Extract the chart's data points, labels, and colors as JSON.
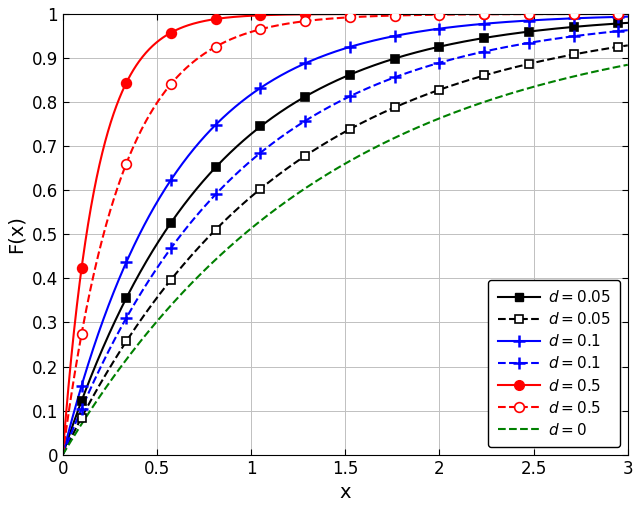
{
  "xlabel": "x",
  "ylabel": "F(x)",
  "xlim": [
    0,
    3
  ],
  "ylim": [
    0,
    1
  ],
  "xticks": [
    0,
    0.5,
    1.0,
    1.5,
    2.0,
    2.5,
    3.0
  ],
  "yticks": [
    0,
    0.1,
    0.2,
    0.3,
    0.4,
    0.5,
    0.6,
    0.7,
    0.8,
    0.9,
    1.0
  ],
  "figsize": [
    6.4,
    5.09
  ],
  "dpi": 100,
  "curves": [
    {
      "color": "black",
      "ls": "-",
      "marker": "s",
      "filled": true,
      "lam": 1.3,
      "label": "d = 0.05"
    },
    {
      "color": "black",
      "ls": "--",
      "marker": "s",
      "filled": false,
      "lam": 0.88,
      "label": "d = 0.05"
    },
    {
      "color": "blue",
      "ls": "-",
      "marker": "+",
      "filled": true,
      "lam": 1.7,
      "label": "d = 0.1"
    },
    {
      "color": "blue",
      "ls": "--",
      "marker": "+",
      "filled": false,
      "lam": 1.1,
      "label": "d = 0.1"
    },
    {
      "color": "red",
      "ls": "-",
      "marker": "o",
      "filled": true,
      "lam": 5.5,
      "label": "d = 0.5"
    },
    {
      "color": "red",
      "ls": "--",
      "marker": "o",
      "filled": false,
      "lam": 3.2,
      "label": "d = 0.5"
    },
    {
      "color": "green",
      "ls": "--",
      "marker": "none",
      "filled": false,
      "lam": 0.72,
      "label": "d = 0"
    }
  ]
}
